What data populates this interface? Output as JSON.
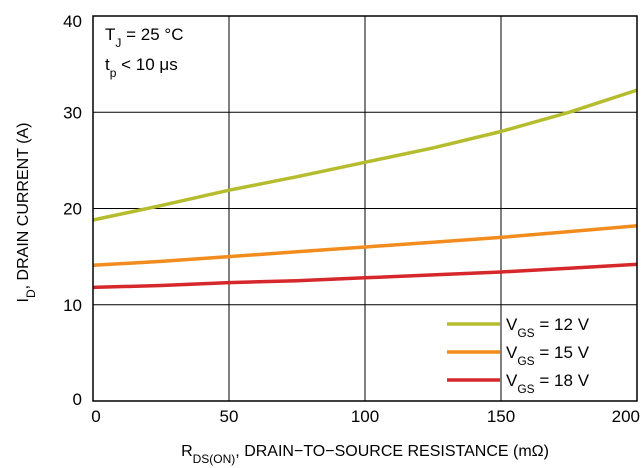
{
  "chart_data": {
    "type": "line",
    "xlabel": {
      "main": "R",
      "sub": "DS(ON)",
      "rest": ", DRAIN−TO−SOURCE RESISTANCE (mΩ)"
    },
    "ylabel": {
      "main": "I",
      "sub": "D",
      "rest": ", DRAIN CURRENT (A)"
    },
    "xlim": [
      0,
      200
    ],
    "ylim": [
      0,
      40
    ],
    "xticks": [
      "0",
      "50",
      "100",
      "150",
      "200"
    ],
    "yticks": [
      "0",
      "10",
      "20",
      "30",
      "40"
    ],
    "grid": true,
    "legend_position": "bottom-right",
    "annotations": [
      {
        "main": "T",
        "sub": "J",
        "rest": " = 25 °C"
      },
      {
        "main": "t",
        "sub": "p",
        "rest": " < 10 μs"
      }
    ],
    "x": [
      0,
      25,
      50,
      75,
      100,
      125,
      150,
      175,
      200
    ],
    "series": [
      {
        "name": "VGS = 12 V",
        "label_main": "V",
        "label_sub": "GS",
        "label_rest": " = 12 V",
        "color": "#b5bd2e",
        "values": [
          18.8,
          20.3,
          21.9,
          23.3,
          24.8,
          26.3,
          28.0,
          30.0,
          32.3
        ]
      },
      {
        "name": "VGS = 15 V",
        "label_main": "V",
        "label_sub": "GS",
        "label_rest": " = 15 V",
        "color": "#f28c1e",
        "values": [
          14.1,
          14.5,
          15.0,
          15.5,
          16.0,
          16.5,
          17.0,
          17.6,
          18.2
        ]
      },
      {
        "name": "VGS = 18 V",
        "label_main": "V",
        "label_sub": "GS",
        "label_rest": " = 18 V",
        "color": "#d6282b",
        "values": [
          11.8,
          12.0,
          12.3,
          12.5,
          12.8,
          13.1,
          13.4,
          13.8,
          14.2
        ]
      }
    ]
  }
}
